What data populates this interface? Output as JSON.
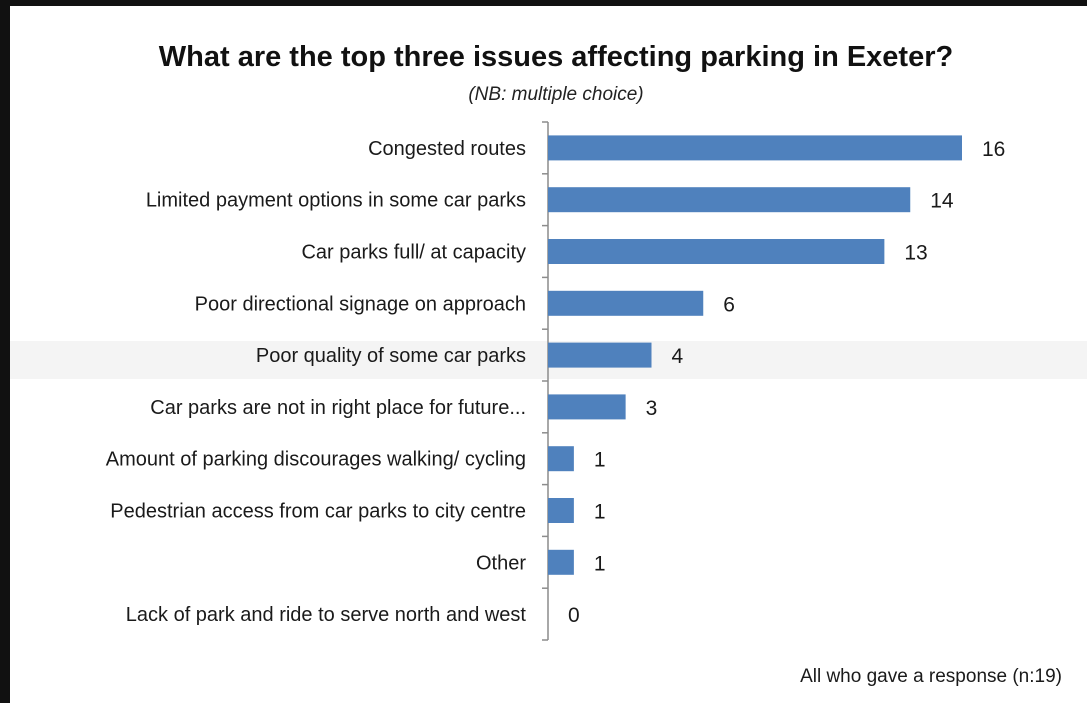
{
  "chart_data": {
    "type": "bar",
    "orientation": "horizontal",
    "title": "What are the top three issues affecting parking in Exeter?",
    "subtitle": "(NB: multiple choice)",
    "categories": [
      "Congested routes",
      "Limited payment options in some car parks",
      "Car parks full/ at capacity",
      "Poor directional signage on approach",
      "Poor quality of some car parks",
      "Car parks are not in right place for future...",
      "Amount of parking discourages walking/ cycling",
      "Pedestrian access from car parks to city centre",
      "Other",
      "Lack of park and ride to serve north and west"
    ],
    "values": [
      16,
      14,
      13,
      6,
      4,
      3,
      1,
      1,
      1,
      0
    ],
    "xlim": [
      0,
      16
    ],
    "grid": false,
    "legend": "none",
    "bar_color": "#4f81bd",
    "footnote": "All who gave a response (n:19)"
  }
}
